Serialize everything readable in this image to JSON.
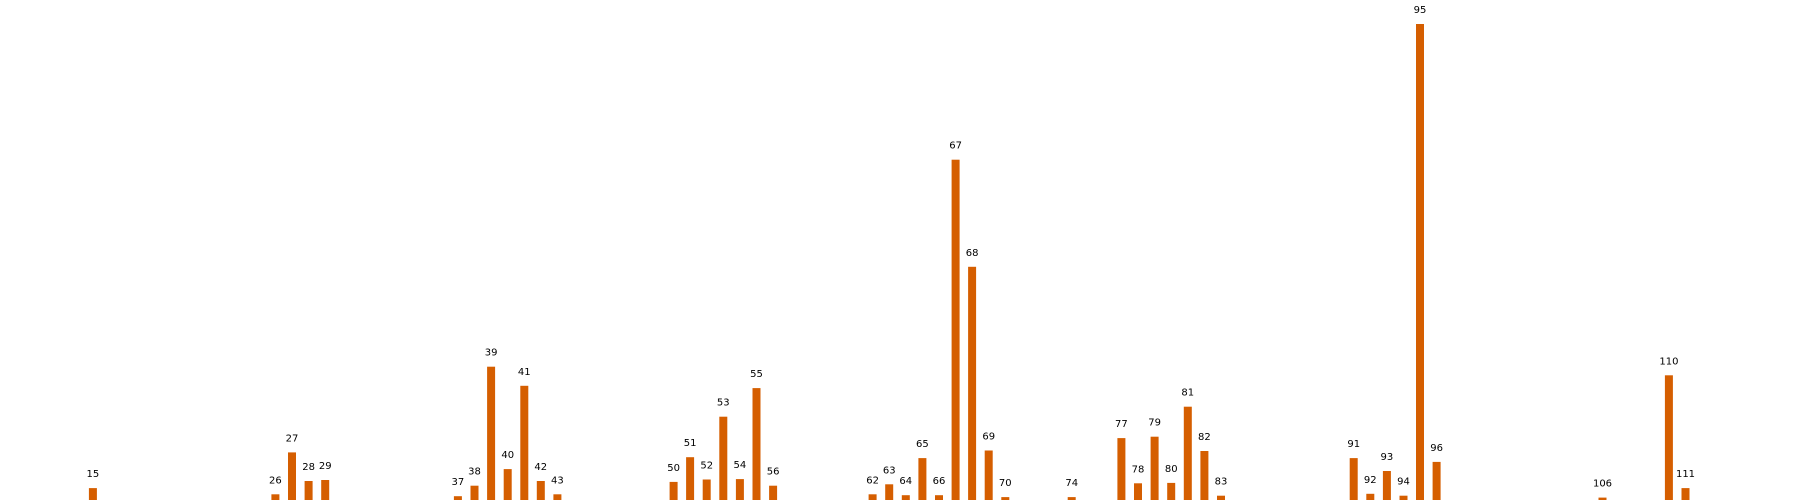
{
  "chart_data": {
    "type": "bar",
    "title": "",
    "xlabel": "",
    "ylabel": "",
    "x_range": [
      10,
      117
    ],
    "ylim": [
      0,
      100
    ],
    "grid": false,
    "legend": "none",
    "bar_color": "#d55e00",
    "x": [
      15,
      26,
      27,
      28,
      29,
      37,
      38,
      39,
      40,
      41,
      42,
      43,
      50,
      51,
      52,
      53,
      54,
      55,
      56,
      62,
      63,
      64,
      65,
      66,
      67,
      68,
      69,
      70,
      74,
      77,
      78,
      79,
      80,
      81,
      82,
      83,
      91,
      92,
      93,
      94,
      95,
      96,
      106,
      110,
      111
    ],
    "values": [
      2.5,
      1.2,
      10,
      4,
      4.2,
      0.8,
      3,
      28,
      6.5,
      24,
      4,
      1.2,
      3.8,
      9,
      4.3,
      17.5,
      4.4,
      23.5,
      3,
      1.2,
      3.3,
      1,
      8.8,
      1,
      71.5,
      49,
      10.4,
      0.6,
      0.6,
      13,
      3.5,
      13.3,
      3.6,
      19.6,
      10.3,
      0.9,
      8.8,
      1.3,
      6.1,
      0.9,
      100,
      8,
      0.5,
      26.2,
      2.5
    ],
    "labels": [
      "15",
      "26",
      "27",
      "28",
      "29",
      "37",
      "38",
      "39",
      "40",
      "41",
      "42",
      "43",
      "50",
      "51",
      "52",
      "53",
      "54",
      "55",
      "56",
      "62",
      "63",
      "64",
      "65",
      "66",
      "67",
      "68",
      "69",
      "70",
      "74",
      "77",
      "78",
      "79",
      "80",
      "81",
      "82",
      "83",
      "91",
      "92",
      "93",
      "94",
      "95",
      "96",
      "106",
      "110",
      "111"
    ]
  }
}
